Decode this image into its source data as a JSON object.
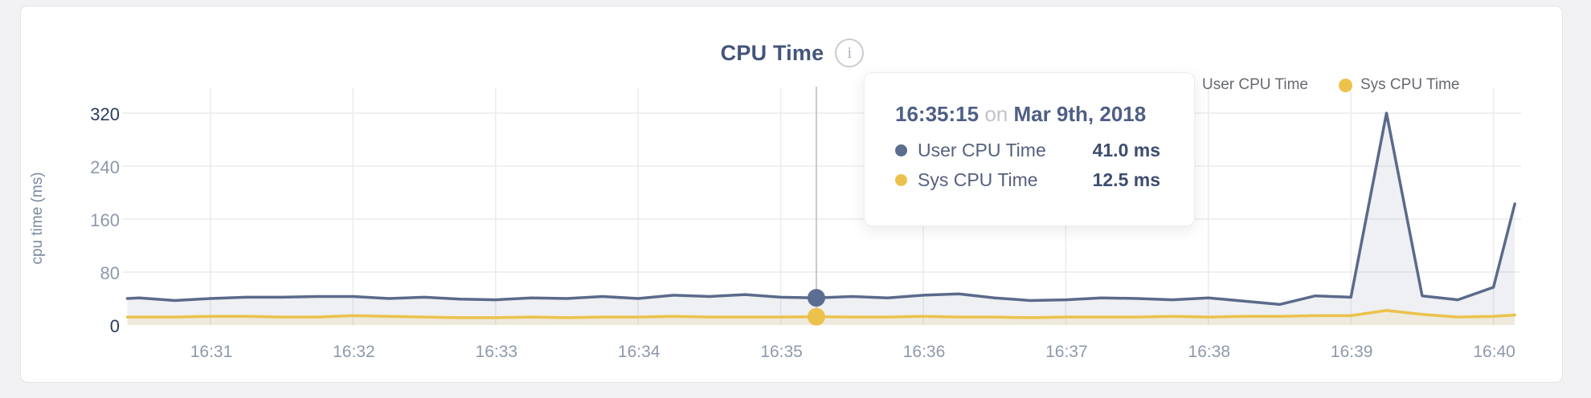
{
  "header": {
    "title": "CPU Time",
    "info_icon": "i"
  },
  "legend": [
    {
      "label": "User CPU Time",
      "color": "#5b6d90"
    },
    {
      "label": "Sys CPU Time",
      "color": "#ecc24c"
    }
  ],
  "tooltip": {
    "time": "16:35:15",
    "connector": "on",
    "date": "Mar 9th, 2018",
    "rows": [
      {
        "label": "User CPU Time",
        "value": "41.0 ms",
        "color": "#5b6d90"
      },
      {
        "label": "Sys CPU Time",
        "value": "12.5 ms",
        "color": "#ecc24c"
      }
    ]
  },
  "chart_data": {
    "type": "area",
    "title": "CPU Time",
    "xlabel": "",
    "ylabel": "cpu time (ms)",
    "grid": true,
    "legend_position": "top-right",
    "y_ticks": [
      0,
      80,
      160,
      240,
      320
    ],
    "ylim": [
      0,
      362
    ],
    "x_tick_labels": [
      "16:31",
      "16:32",
      "16:33",
      "16:34",
      "16:35",
      "16:36",
      "16:37",
      "16:38",
      "16:39",
      "16:40"
    ],
    "x_times": [
      "16:30:25",
      "16:30:30",
      "16:30:45",
      "16:31:00",
      "16:31:15",
      "16:31:30",
      "16:31:45",
      "16:32:00",
      "16:32:15",
      "16:32:30",
      "16:32:45",
      "16:33:00",
      "16:33:15",
      "16:33:30",
      "16:33:45",
      "16:34:00",
      "16:34:15",
      "16:34:30",
      "16:34:45",
      "16:35:00",
      "16:35:15",
      "16:35:30",
      "16:35:45",
      "16:36:00",
      "16:36:15",
      "16:36:30",
      "16:36:45",
      "16:37:00",
      "16:37:15",
      "16:37:30",
      "16:37:45",
      "16:38:00",
      "16:38:15",
      "16:38:30",
      "16:38:45",
      "16:39:00",
      "16:39:15",
      "16:39:30",
      "16:39:45",
      "16:40:00",
      "16:40:09"
    ],
    "series": [
      {
        "name": "User CPU Time",
        "color": "#5b6a8b",
        "fill": "rgba(91,106,139,0.10)",
        "values": [
          40,
          41,
          37,
          40,
          42,
          42,
          43,
          43,
          40,
          42,
          39,
          38,
          41,
          40,
          43,
          40,
          45,
          43,
          46,
          42,
          41,
          43,
          41,
          45,
          47,
          41,
          37,
          38,
          41,
          40,
          38,
          41,
          36,
          31,
          44,
          42,
          320,
          44,
          38,
          57,
          183
        ]
      },
      {
        "name": "Sys CPU Time",
        "color": "#ecc24c",
        "fill": "rgba(238,196,78,0.13)",
        "values": [
          12,
          12,
          12,
          13,
          13,
          12,
          12,
          14,
          13,
          12,
          11,
          11,
          12,
          11,
          12,
          12,
          13,
          12,
          12,
          12,
          12.5,
          12,
          12,
          13,
          12,
          12,
          11,
          12,
          12,
          12,
          13,
          12,
          13,
          13,
          14,
          14,
          22,
          16,
          12,
          13,
          15
        ]
      }
    ],
    "hover": {
      "index": 20,
      "time": "16:35:15",
      "user_value_ms": 41.0,
      "sys_value_ms": 12.5
    }
  }
}
